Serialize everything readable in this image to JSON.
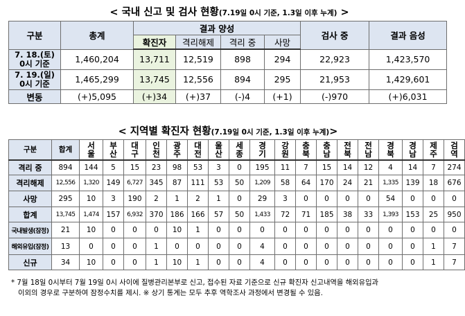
{
  "title1": {
    "main": "< 국내 신고 및 검사 현황",
    "sub": "(7.19일 0시 기준, 1.3일 이후 누계)",
    "end": " >"
  },
  "table1": {
    "headers": {
      "category": "구분",
      "total": "총계",
      "positive": "결과 양성",
      "confirmed": "확진자",
      "released": "격리해제",
      "isolating": "격리 중",
      "deaths": "사망",
      "testing": "검사 중",
      "negative": "결과 음성"
    },
    "rows": [
      {
        "label_l1": "7. 18.(토)",
        "label_l2": "0시 기준",
        "total": "1,460,204",
        "confirmed": "13,711",
        "released": "12,519",
        "isolating": "898",
        "deaths": "294",
        "testing": "22,923",
        "negative": "1,423,570"
      },
      {
        "label_l1": "7. 19.(일)",
        "label_l2": "0시 기준",
        "total": "1,465,299",
        "confirmed": "13,745",
        "released": "12,556",
        "isolating": "894",
        "deaths": "295",
        "testing": "21,953",
        "negative": "1,429,601"
      },
      {
        "label_l1": "변동",
        "label_l2": "",
        "total": "(+)5,095",
        "confirmed": "(+)34",
        "released": "(+)37",
        "isolating": "(-)4",
        "deaths": "(+1)",
        "testing": "(-)970",
        "negative": "(+)6,031"
      }
    ]
  },
  "title2": {
    "main": "< 지역별 확진자 현황",
    "sub": "(7.19일 0시 기준, 1.3일 이후 누계)",
    "end": ">"
  },
  "table2": {
    "header_category": "구분",
    "header_total": "합계",
    "regions": [
      "서울",
      "부산",
      "대구",
      "인천",
      "광주",
      "대전",
      "울산",
      "세종",
      "경기",
      "강원",
      "충북",
      "충남",
      "전북",
      "전남",
      "경북",
      "경남",
      "제주",
      "검역"
    ],
    "rows": [
      {
        "label": "격리 중",
        "total": "894",
        "values": [
          "144",
          "5",
          "15",
          "23",
          "98",
          "53",
          "3",
          "0",
          "195",
          "11",
          "7",
          "15",
          "14",
          "12",
          "4",
          "14",
          "7",
          "274"
        ]
      },
      {
        "label": "격리해제",
        "total": "12,556",
        "values": [
          "1,320",
          "149",
          "6,727",
          "345",
          "87",
          "111",
          "53",
          "50",
          "1,209",
          "58",
          "64",
          "170",
          "24",
          "21",
          "1,335",
          "139",
          "18",
          "676"
        ]
      },
      {
        "label": "사망",
        "total": "295",
        "values": [
          "10",
          "3",
          "190",
          "2",
          "1",
          "2",
          "1",
          "0",
          "29",
          "3",
          "0",
          "0",
          "0",
          "0",
          "54",
          "0",
          "0",
          "0"
        ]
      },
      {
        "label": "합계",
        "total": "13,745",
        "values": [
          "1,474",
          "157",
          "6,932",
          "370",
          "186",
          "166",
          "57",
          "50",
          "1,433",
          "72",
          "71",
          "185",
          "38",
          "33",
          "1,393",
          "153",
          "25",
          "950"
        ]
      },
      {
        "label": "국내발생(잠정)",
        "total": "21",
        "values": [
          "10",
          "0",
          "0",
          "0",
          "10",
          "1",
          "0",
          "0",
          "0",
          "0",
          "0",
          "0",
          "0",
          "0",
          "0",
          "0",
          "0",
          "0"
        ]
      },
      {
        "label": "해외유입(잠정)",
        "total": "13",
        "values": [
          "0",
          "0",
          "0",
          "1",
          "0",
          "0",
          "0",
          "0",
          "4",
          "0",
          "0",
          "0",
          "0",
          "0",
          "0",
          "0",
          "1",
          "7"
        ]
      },
      {
        "label": "신규",
        "total": "34",
        "values": [
          "10",
          "0",
          "0",
          "1",
          "10",
          "1",
          "0",
          "0",
          "4",
          "0",
          "0",
          "0",
          "0",
          "0",
          "0",
          "0",
          "1",
          "7"
        ]
      }
    ]
  },
  "note": {
    "line1": "* 7월 18일 0시부터 7월 19일 0시 사이에 질병관리본부로 신고, 접수된 자료 기준으로 신규 확진자 신고내역을 해외유입과",
    "line2": "이외의 경우로 구분하여 잠정수치를 제시. ※ 상기 통계는 모두 추후 역학조사 과정에서 변경될 수 있음."
  }
}
